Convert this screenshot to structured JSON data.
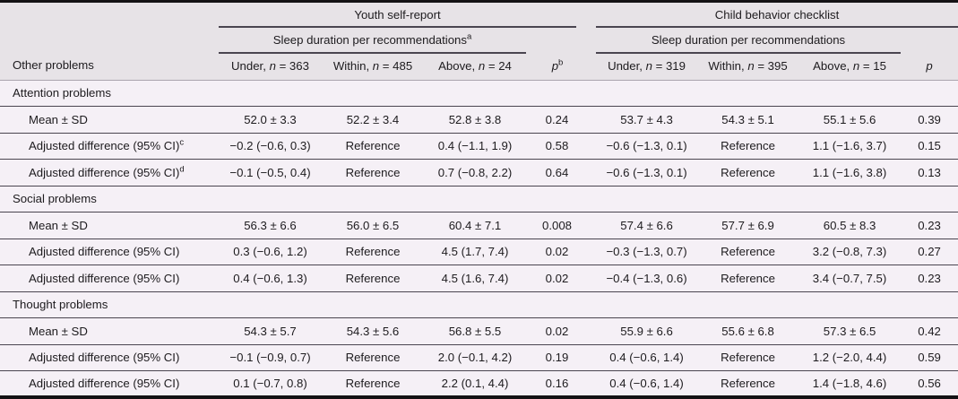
{
  "colors": {
    "header_background": "#e7e3e7",
    "body_background": "#f5f0f6",
    "rule_line": "#4a4550",
    "outer_border": "#141215",
    "text": "#1d1b1e"
  },
  "table": {
    "row_label_header": "Other problems",
    "n_symbol": "n",
    "groups": [
      {
        "title": "Youth self-report",
        "subtitle": "Sleep duration per recommendations",
        "subtitle_sup": "a",
        "columns": [
          {
            "prefix": "Under, ",
            "suffix": " = 363"
          },
          {
            "prefix": "Within, ",
            "suffix": " = 485"
          },
          {
            "prefix": "Above, ",
            "suffix": " = 24"
          }
        ],
        "p_header": {
          "label": "p",
          "sup": "b"
        }
      },
      {
        "title": "Child behavior checklist",
        "subtitle": "Sleep duration per recommendations",
        "subtitle_sup": "",
        "columns": [
          {
            "prefix": "Under, ",
            "suffix": " = 319"
          },
          {
            "prefix": "Within, ",
            "suffix": " = 395"
          },
          {
            "prefix": "Above, ",
            "suffix": " = 15"
          }
        ],
        "p_header": {
          "label": "p",
          "sup": ""
        }
      }
    ],
    "sections": [
      {
        "title": "Attention problems",
        "rows": [
          {
            "label": "Mean ± SD",
            "sup": "",
            "ysr": [
              "52.0 ± 3.3",
              "52.2 ± 3.4",
              "52.8 ± 3.8",
              "0.24"
            ],
            "cbcl": [
              "53.7 ± 4.3",
              "54.3 ± 5.1",
              "55.1 ± 5.6",
              "0.39"
            ]
          },
          {
            "label": "Adjusted difference (95% CI)",
            "sup": "c",
            "ysr": [
              "−0.2 (−0.6, 0.3)",
              "Reference",
              "0.4 (−1.1, 1.9)",
              "0.58"
            ],
            "cbcl": [
              "−0.6 (−1.3, 0.1)",
              "Reference",
              "1.1 (−1.6, 3.7)",
              "0.15"
            ]
          },
          {
            "label": "Adjusted difference (95% CI)",
            "sup": "d",
            "ysr": [
              "−0.1 (−0.5, 0.4)",
              "Reference",
              "0.7 (−0.8, 2.2)",
              "0.64"
            ],
            "cbcl": [
              "−0.6 (−1.3, 0.1)",
              "Reference",
              "1.1 (−1.6, 3.8)",
              "0.13"
            ]
          }
        ]
      },
      {
        "title": "Social problems",
        "rows": [
          {
            "label": "Mean ± SD",
            "sup": "",
            "ysr": [
              "56.3 ± 6.6",
              "56.0 ± 6.5",
              "60.4 ± 7.1",
              "0.008"
            ],
            "cbcl": [
              "57.4 ± 6.6",
              "57.7 ± 6.9",
              "60.5 ± 8.3",
              "0.23"
            ]
          },
          {
            "label": "Adjusted difference (95% CI)",
            "sup": "",
            "ysr": [
              "0.3 (−0.6, 1.2)",
              "Reference",
              "4.5 (1.7, 7.4)",
              "0.02"
            ],
            "cbcl": [
              "−0.3 (−1.3, 0.7)",
              "Reference",
              "3.2 (−0.8, 7.3)",
              "0.27"
            ]
          },
          {
            "label": "Adjusted difference (95% CI)",
            "sup": "",
            "ysr": [
              "0.4 (−0.6, 1.3)",
              "Reference",
              "4.5 (1.6, 7.4)",
              "0.02"
            ],
            "cbcl": [
              "−0.4 (−1.3, 0.6)",
              "Reference",
              "3.4 (−0.7, 7.5)",
              "0.23"
            ]
          }
        ]
      },
      {
        "title": "Thought problems",
        "rows": [
          {
            "label": "Mean ± SD",
            "sup": "",
            "ysr": [
              "54.3 ± 5.7",
              "54.3 ± 5.6",
              "56.8 ± 5.5",
              "0.02"
            ],
            "cbcl": [
              "55.9 ± 6.6",
              "55.6 ± 6.8",
              "57.3 ± 6.5",
              "0.42"
            ]
          },
          {
            "label": "Adjusted difference (95% CI)",
            "sup": "",
            "ysr": [
              "−0.1 (−0.9, 0.7)",
              "Reference",
              "2.0 (−0.1, 4.2)",
              "0.19"
            ],
            "cbcl": [
              "0.4 (−0.6, 1.4)",
              "Reference",
              "1.2 (−2.0, 4.4)",
              "0.59"
            ]
          },
          {
            "label": "Adjusted difference (95% CI)",
            "sup": "",
            "ysr": [
              "0.1 (−0.7, 0.8)",
              "Reference",
              "2.2 (0.1, 4.4)",
              "0.16"
            ],
            "cbcl": [
              "0.4 (−0.6, 1.4)",
              "Reference",
              "1.4 (−1.8, 4.6)",
              "0.56"
            ]
          }
        ]
      }
    ]
  }
}
